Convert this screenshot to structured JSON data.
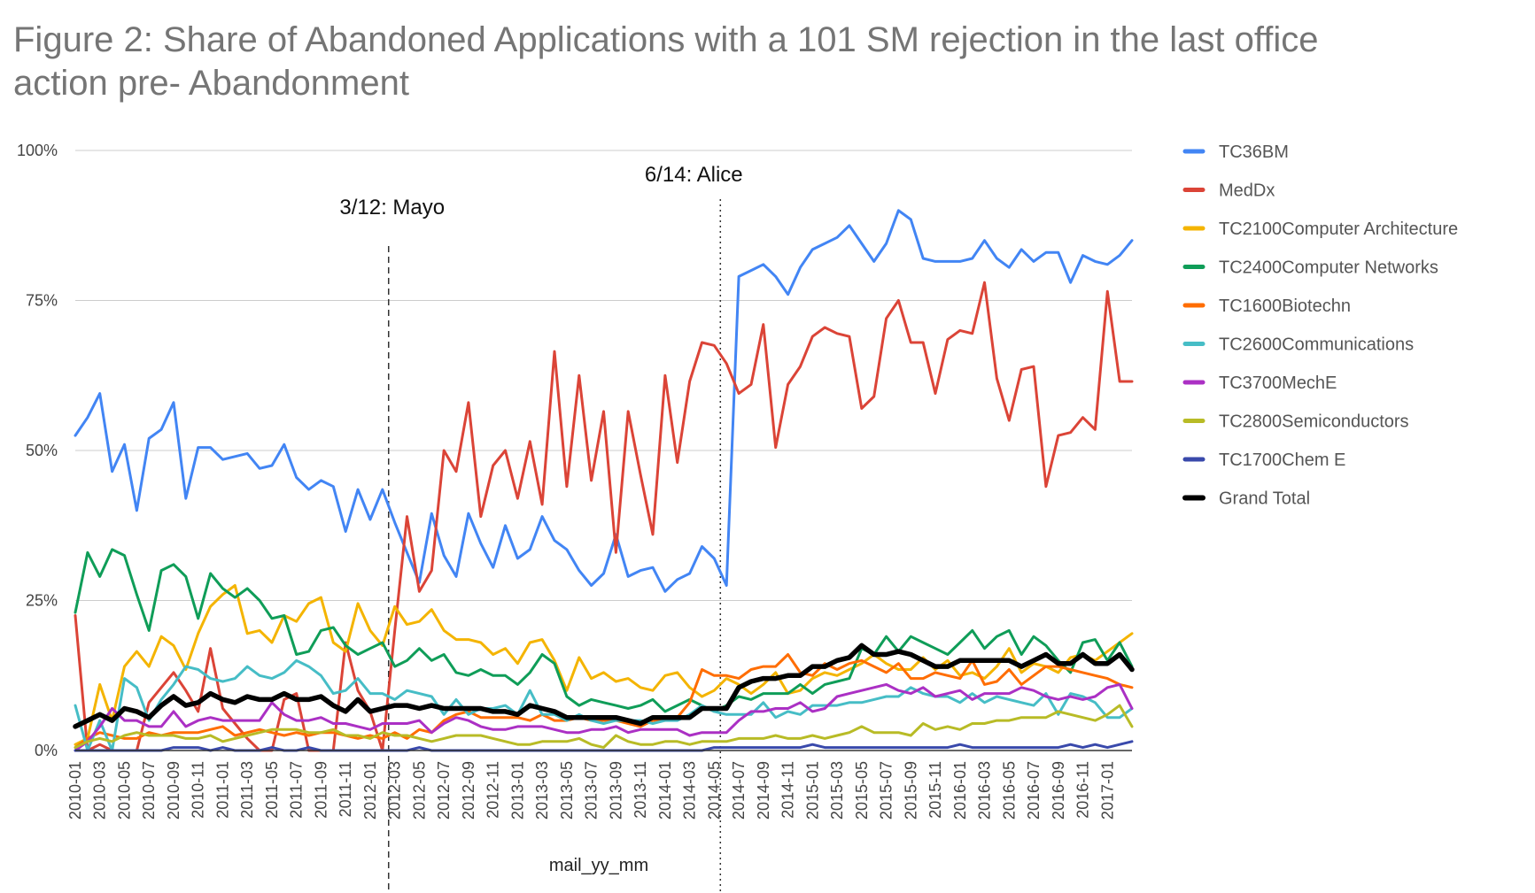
{
  "chart_data": {
    "type": "line",
    "title_line1": "Figure 2: Share of Abandoned Applications with a 101 SM rejection in the last office",
    "title_line2": "action pre- Abandonment",
    "xlabel": "mail_yy_mm",
    "ylabel": "",
    "ylim": [
      0,
      100
    ],
    "y_ticks": [
      "0%",
      "25%",
      "50%",
      "75%",
      "100%"
    ],
    "y_tick_values": [
      0,
      25,
      50,
      75,
      100
    ],
    "x_tick_labels": [
      "2010-01",
      "2010-03",
      "2010-05",
      "2010-07",
      "2010-09",
      "2010-11",
      "2011-01",
      "2011-03",
      "2011-05",
      "2011-07",
      "2011-09",
      "2011-11",
      "2012-01",
      "2012-03",
      "2012-05",
      "2012-07",
      "2012-09",
      "2012-11",
      "2013-01",
      "2013-03",
      "2013-05",
      "2013-07",
      "2013-09",
      "2013-11",
      "2014-01",
      "2014-03",
      "2014-05",
      "2014-07",
      "2014-09",
      "2014-11",
      "2015-01",
      "2015-03",
      "2015-05",
      "2015-07",
      "2015-09",
      "2015-11",
      "2016-01",
      "2016-03",
      "2016-05",
      "2016-07",
      "2016-09",
      "2016-11",
      "2017-01"
    ],
    "n_points": 87,
    "legend_position": "right",
    "annotations": [
      {
        "label": "3/12: Mayo",
        "x_index": 26
      },
      {
        "label": "6/14: Alice",
        "x_index": 53
      }
    ],
    "series": [
      {
        "name": "TC36BM",
        "color": "#4285f4",
        "values": [
          52.5,
          55.5,
          59.5,
          46.5,
          51,
          40,
          52,
          53.5,
          58,
          42,
          50.5,
          50.5,
          48.5,
          49,
          49.5,
          47,
          47.5,
          51,
          45.5,
          43.5,
          45,
          44,
          36.5,
          43.5,
          38.5,
          43.5,
          38,
          33,
          28,
          39.5,
          32.5,
          29,
          39.5,
          34.5,
          30.5,
          37.5,
          32,
          33.5,
          39,
          35,
          33.5,
          30,
          27.5,
          29.5,
          36,
          29,
          30,
          30.5,
          26.5,
          28.5,
          29.5,
          34,
          32,
          27.5,
          79,
          80,
          81,
          79,
          76,
          80.5,
          83.5,
          84.5,
          85.5,
          87.5,
          84.5,
          81.5,
          84.5,
          90,
          88.5,
          82,
          81.5,
          81.5,
          81.5,
          82,
          85,
          82,
          80.5,
          83.5,
          81.5,
          83,
          83,
          78,
          82.5,
          81.5,
          81,
          82.5,
          85
        ]
      },
      {
        "name": "MedDx",
        "color": "#db4437",
        "values": [
          22.5,
          0,
          1,
          0,
          0,
          0,
          8,
          10.5,
          13,
          10,
          6.5,
          17,
          7,
          4.5,
          2,
          0,
          0,
          8.5,
          9.5,
          0,
          0,
          0,
          18,
          10,
          6.5,
          0,
          20,
          39,
          26.5,
          30,
          50,
          46.5,
          58,
          39,
          47.5,
          50,
          42,
          51.5,
          41,
          66.5,
          44,
          62.5,
          45,
          56.5,
          33,
          56.5,
          46,
          36,
          62.5,
          48,
          61.5,
          68,
          67.5,
          64.5,
          59.5,
          61,
          71,
          50.5,
          61,
          64,
          69,
          70.5,
          69.5,
          69,
          57,
          59,
          72,
          75,
          68,
          68,
          59.5,
          68.5,
          70,
          69.5,
          78,
          62,
          55,
          63.5,
          64,
          44,
          52.5,
          53,
          55.5,
          53.5,
          76.5,
          61.5,
          61.5
        ]
      },
      {
        "name": "TC2100Computer Architecture",
        "color": "#f4b400",
        "values": [
          1,
          2,
          11,
          5,
          14,
          16.5,
          14,
          19,
          17.5,
          13.5,
          19.5,
          24,
          26,
          27.5,
          19.5,
          20,
          18,
          22.5,
          21.5,
          24.5,
          25.5,
          18,
          16.5,
          24.5,
          20,
          17.5,
          24,
          21,
          21.5,
          23.5,
          20,
          18.5,
          18.5,
          18,
          16,
          17,
          14.5,
          18,
          18.5,
          15,
          10,
          15.5,
          12,
          13,
          11.5,
          12,
          10.5,
          10,
          12.5,
          13,
          10.5,
          9,
          10,
          12,
          11,
          9.5,
          11,
          13,
          9.5,
          10,
          12,
          13,
          12.5,
          13.5,
          14.5,
          16,
          14.5,
          13.5,
          13.5,
          15.5,
          13.5,
          15,
          12.5,
          13,
          12,
          14,
          17,
          13,
          14.5,
          14,
          13,
          15.5,
          16,
          15,
          16.5,
          18,
          19.5
        ]
      },
      {
        "name": "TC2400Computer Networks",
        "color": "#0f9d58",
        "values": [
          23,
          33,
          29,
          33.5,
          32.5,
          26,
          20,
          30,
          31,
          29,
          22,
          29.5,
          27,
          25.5,
          27,
          25,
          22,
          22.5,
          16,
          16.5,
          20,
          20.5,
          17.5,
          16,
          17,
          18,
          14,
          15,
          17,
          15,
          16,
          13,
          12.5,
          13.5,
          12.5,
          12.5,
          11,
          13,
          16,
          14.5,
          9,
          7.5,
          8.5,
          8,
          7.5,
          7,
          7.5,
          8.5,
          6.5,
          7.5,
          8.5,
          7.5,
          6.5,
          7.5,
          9,
          8.5,
          9.5,
          9.5,
          9.5,
          11,
          9.5,
          11,
          11.5,
          12,
          17,
          16,
          19,
          16.5,
          19,
          18,
          17,
          16,
          18,
          20,
          17,
          19,
          20,
          16,
          19,
          17.5,
          15,
          13,
          18,
          18.5,
          15,
          18,
          14
        ]
      },
      {
        "name": "TC1600Biotechn",
        "color": "#ff6d01",
        "values": [
          0.5,
          2,
          3,
          2.5,
          2,
          2,
          3,
          2.5,
          3,
          3,
          3,
          3.5,
          4,
          2.5,
          3,
          3.5,
          3,
          2.5,
          3,
          2.5,
          3,
          3,
          2.5,
          2,
          2.5,
          2,
          3,
          2,
          3.5,
          3,
          5,
          6,
          6.5,
          5.5,
          5.5,
          5.5,
          5.5,
          5,
          6,
          5,
          5,
          5.5,
          5,
          5,
          5,
          4.5,
          4,
          5,
          5,
          5.5,
          8,
          13.5,
          12.5,
          12.5,
          12,
          13.5,
          14,
          14,
          16,
          13,
          12.5,
          14.5,
          13.5,
          14.5,
          15,
          14,
          13,
          14.5,
          12,
          12,
          13,
          12.5,
          12,
          15,
          11,
          11.5,
          13.5,
          11,
          12.5,
          14,
          14,
          13.5,
          13,
          12.5,
          12,
          11,
          10.5
        ]
      },
      {
        "name": "TC2600Communications",
        "color": "#46bdc6",
        "values": [
          7.5,
          0,
          5,
          0,
          12,
          10.5,
          5,
          8.5,
          11,
          14,
          13.5,
          12,
          11.5,
          12,
          14,
          12.5,
          12,
          13,
          15,
          14,
          12.5,
          9.5,
          10,
          12,
          9.5,
          9.5,
          8.5,
          10,
          9.5,
          9,
          6,
          8.5,
          6,
          7,
          7,
          7.5,
          6,
          10,
          6,
          6,
          5,
          6,
          5,
          4.5,
          5,
          5,
          5,
          4.5,
          5,
          5,
          6,
          7.5,
          6.5,
          6,
          6,
          6,
          8,
          5.5,
          6.5,
          6,
          7.5,
          7.5,
          7.5,
          8,
          8,
          8.5,
          9,
          9,
          10.5,
          9.5,
          9,
          9,
          8,
          9.5,
          8,
          9,
          8.5,
          8,
          7.5,
          9.5,
          6,
          9.5,
          9,
          8,
          5.5,
          5.5,
          7
        ]
      },
      {
        "name": "TC3700MechE",
        "color": "#ab30c4",
        "values": [
          0,
          1.5,
          4,
          7,
          5,
          5,
          4,
          4,
          6.5,
          4,
          5,
          5.5,
          5,
          5,
          5,
          5,
          8,
          6,
          5,
          5,
          5.5,
          4.5,
          4.5,
          4,
          3.5,
          4.5,
          4.5,
          4.5,
          5,
          3,
          4.5,
          5.5,
          5,
          4,
          3.5,
          3.5,
          4,
          4,
          4,
          3.5,
          3,
          3,
          3.5,
          3.5,
          4,
          3,
          3.5,
          3.5,
          3.5,
          3.5,
          2.5,
          3,
          3,
          3,
          5,
          6.5,
          6.5,
          7,
          7,
          8,
          6.5,
          7,
          9,
          9.5,
          10,
          10.5,
          11,
          10,
          9.5,
          10.5,
          9,
          9.5,
          10,
          8.5,
          9.5,
          9.5,
          9.5,
          10.5,
          10,
          9,
          8.5,
          9,
          8.5,
          9,
          10.5,
          11,
          7
        ]
      },
      {
        "name": "TC2800Semiconductors",
        "color": "#b8bb26",
        "values": [
          0.5,
          1.5,
          2,
          1.5,
          2.5,
          3,
          2.5,
          2.5,
          2.5,
          2,
          2,
          2.5,
          1.5,
          2,
          2.5,
          3,
          3.5,
          3.5,
          3.5,
          3,
          3,
          3.5,
          2.5,
          2.5,
          2,
          3,
          2.5,
          2.5,
          2,
          1.5,
          2,
          2.5,
          2.5,
          2.5,
          2,
          1.5,
          1,
          1,
          1.5,
          1.5,
          1.5,
          2,
          1,
          0.5,
          2.5,
          1.5,
          1,
          1,
          1.5,
          1.5,
          1,
          1.5,
          1.5,
          1.5,
          2,
          2,
          2,
          2.5,
          2,
          2,
          2.5,
          2,
          2.5,
          3,
          4,
          3,
          3,
          3,
          2.5,
          4.5,
          3.5,
          4,
          3.5,
          4.5,
          4.5,
          5,
          5,
          5.5,
          5.5,
          5.5,
          6.5,
          6,
          5.5,
          5,
          6,
          7.5,
          4
        ]
      },
      {
        "name": "TC1700Chem E",
        "color": "#3949ab",
        "values": [
          0,
          0,
          0,
          0,
          0,
          0,
          0,
          0,
          0.5,
          0.5,
          0.5,
          0,
          0.5,
          0,
          0,
          0,
          0.5,
          0,
          0,
          0.5,
          0,
          0,
          0,
          0,
          0,
          0,
          0,
          0,
          0.5,
          0,
          0,
          0,
          0,
          0,
          0,
          0,
          0,
          0,
          0,
          0,
          0,
          0,
          0,
          0,
          0,
          0,
          0,
          0,
          0,
          0,
          0,
          0,
          0.5,
          0.5,
          0.5,
          0.5,
          0.5,
          0.5,
          0.5,
          0.5,
          1,
          0.5,
          0.5,
          0.5,
          0.5,
          0.5,
          0.5,
          0.5,
          0.5,
          0.5,
          0.5,
          0.5,
          1,
          0.5,
          0.5,
          0.5,
          0.5,
          0.5,
          0.5,
          0.5,
          0.5,
          1,
          0.5,
          1,
          0.5,
          1,
          1.5
        ]
      },
      {
        "name": "Grand Total",
        "color": "#000000",
        "values": [
          4,
          5,
          6,
          5,
          7,
          6.5,
          5.5,
          7.5,
          9,
          7.5,
          8,
          9.5,
          8.5,
          8,
          9,
          8.5,
          8.5,
          9.5,
          8.5,
          8.5,
          9,
          7.5,
          6.5,
          8.5,
          6.5,
          7,
          7.5,
          7.5,
          7,
          7.5,
          7,
          7,
          7,
          7,
          6.5,
          6.5,
          6,
          7.5,
          7,
          6.5,
          5.5,
          5.5,
          5.5,
          5.5,
          5.5,
          5,
          4.5,
          5.5,
          5.5,
          5.5,
          5.5,
          7,
          7,
          7,
          10.5,
          11.5,
          12,
          12,
          12.5,
          12.5,
          14,
          14,
          15,
          15.5,
          17.5,
          16,
          16,
          16.5,
          16,
          15,
          14,
          14,
          15,
          15,
          15,
          15,
          15,
          14,
          15,
          16,
          14.5,
          14.5,
          16,
          14.5,
          14.5,
          16,
          13.5
        ]
      }
    ]
  }
}
